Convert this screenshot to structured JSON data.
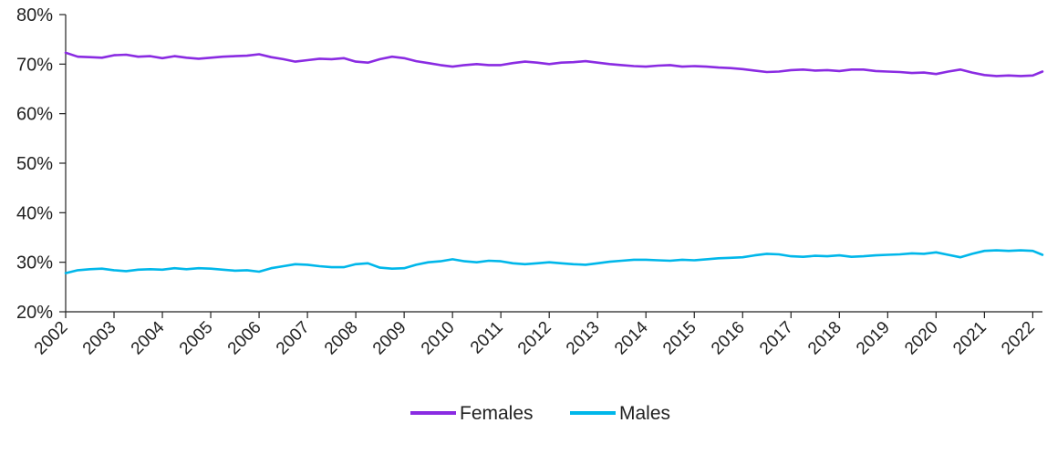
{
  "chart_data": {
    "type": "line",
    "title": "",
    "xlabel": "",
    "ylabel": "",
    "x_ticks": [
      "2002",
      "2003",
      "2004",
      "2005",
      "2006",
      "2007",
      "2008",
      "2009",
      "2010",
      "2011",
      "2012",
      "2013",
      "2014",
      "2015",
      "2016",
      "2017",
      "2018",
      "2019",
      "2020",
      "2021",
      "2022"
    ],
    "y_ticks": [
      "20%",
      "30%",
      "40%",
      "50%",
      "60%",
      "70%",
      "80%"
    ],
    "xlim": [
      2002,
      2022.2
    ],
    "ylim": [
      20,
      80
    ],
    "grid": false,
    "legend_position": "bottom-center",
    "series": [
      {
        "name": "Females",
        "color": "#8a2be2",
        "x": [
          2002.0,
          2002.25,
          2002.5,
          2002.75,
          2003.0,
          2003.25,
          2003.5,
          2003.75,
          2004.0,
          2004.25,
          2004.5,
          2004.75,
          2005.0,
          2005.25,
          2005.5,
          2005.75,
          2006.0,
          2006.25,
          2006.5,
          2006.75,
          2007.0,
          2007.25,
          2007.5,
          2007.75,
          2008.0,
          2008.25,
          2008.5,
          2008.75,
          2009.0,
          2009.25,
          2009.5,
          2009.75,
          2010.0,
          2010.25,
          2010.5,
          2010.75,
          2011.0,
          2011.25,
          2011.5,
          2011.75,
          2012.0,
          2012.25,
          2012.5,
          2012.75,
          2013.0,
          2013.25,
          2013.5,
          2013.75,
          2014.0,
          2014.25,
          2014.5,
          2014.75,
          2015.0,
          2015.25,
          2015.5,
          2015.75,
          2016.0,
          2016.25,
          2016.5,
          2016.75,
          2017.0,
          2017.25,
          2017.5,
          2017.75,
          2018.0,
          2018.25,
          2018.5,
          2018.75,
          2019.0,
          2019.25,
          2019.5,
          2019.75,
          2020.0,
          2020.25,
          2020.5,
          2020.75,
          2021.0,
          2021.25,
          2021.5,
          2021.75,
          2022.0,
          2022.2
        ],
        "y": [
          72.3,
          71.5,
          71.4,
          71.3,
          71.8,
          71.9,
          71.5,
          71.6,
          71.2,
          71.6,
          71.3,
          71.1,
          71.3,
          71.5,
          71.6,
          71.7,
          72.0,
          71.4,
          71.0,
          70.5,
          70.8,
          71.1,
          71.0,
          71.2,
          70.5,
          70.3,
          71.0,
          71.5,
          71.2,
          70.6,
          70.2,
          69.8,
          69.5,
          69.8,
          70.0,
          69.8,
          69.8,
          70.2,
          70.5,
          70.3,
          70.0,
          70.3,
          70.4,
          70.6,
          70.3,
          70.0,
          69.8,
          69.6,
          69.5,
          69.7,
          69.8,
          69.5,
          69.6,
          69.5,
          69.3,
          69.2,
          69.0,
          68.7,
          68.4,
          68.5,
          68.8,
          68.9,
          68.7,
          68.8,
          68.6,
          68.9,
          68.9,
          68.6,
          68.5,
          68.4,
          68.2,
          68.3,
          68.0,
          68.5,
          68.9,
          68.3,
          67.8,
          67.6,
          67.7,
          67.6,
          67.7,
          68.5
        ]
      },
      {
        "name": "Males",
        "color": "#00b7ea",
        "x": [
          2002.0,
          2002.25,
          2002.5,
          2002.75,
          2003.0,
          2003.25,
          2003.5,
          2003.75,
          2004.0,
          2004.25,
          2004.5,
          2004.75,
          2005.0,
          2005.25,
          2005.5,
          2005.75,
          2006.0,
          2006.25,
          2006.5,
          2006.75,
          2007.0,
          2007.25,
          2007.5,
          2007.75,
          2008.0,
          2008.25,
          2008.5,
          2008.75,
          2009.0,
          2009.25,
          2009.5,
          2009.75,
          2010.0,
          2010.25,
          2010.5,
          2010.75,
          2011.0,
          2011.25,
          2011.5,
          2011.75,
          2012.0,
          2012.25,
          2012.5,
          2012.75,
          2013.0,
          2013.25,
          2013.5,
          2013.75,
          2014.0,
          2014.25,
          2014.5,
          2014.75,
          2015.0,
          2015.25,
          2015.5,
          2015.75,
          2016.0,
          2016.25,
          2016.5,
          2016.75,
          2017.0,
          2017.25,
          2017.5,
          2017.75,
          2018.0,
          2018.25,
          2018.5,
          2018.75,
          2019.0,
          2019.25,
          2019.5,
          2019.75,
          2020.0,
          2020.25,
          2020.5,
          2020.75,
          2021.0,
          2021.25,
          2021.5,
          2021.75,
          2022.0,
          2022.2
        ],
        "y": [
          27.8,
          28.4,
          28.6,
          28.7,
          28.4,
          28.2,
          28.5,
          28.6,
          28.5,
          28.8,
          28.6,
          28.8,
          28.7,
          28.5,
          28.3,
          28.4,
          28.1,
          28.8,
          29.2,
          29.6,
          29.5,
          29.2,
          29.0,
          29.0,
          29.6,
          29.8,
          28.9,
          28.7,
          28.8,
          29.5,
          30.0,
          30.2,
          30.6,
          30.2,
          30.0,
          30.3,
          30.2,
          29.8,
          29.6,
          29.8,
          30.0,
          29.8,
          29.6,
          29.5,
          29.8,
          30.1,
          30.3,
          30.5,
          30.5,
          30.4,
          30.3,
          30.5,
          30.4,
          30.6,
          30.8,
          30.9,
          31.0,
          31.4,
          31.7,
          31.6,
          31.2,
          31.1,
          31.3,
          31.2,
          31.4,
          31.1,
          31.2,
          31.4,
          31.5,
          31.6,
          31.8,
          31.7,
          32.0,
          31.5,
          31.0,
          31.7,
          32.3,
          32.4,
          32.3,
          32.4,
          32.3,
          31.5
        ]
      }
    ]
  }
}
